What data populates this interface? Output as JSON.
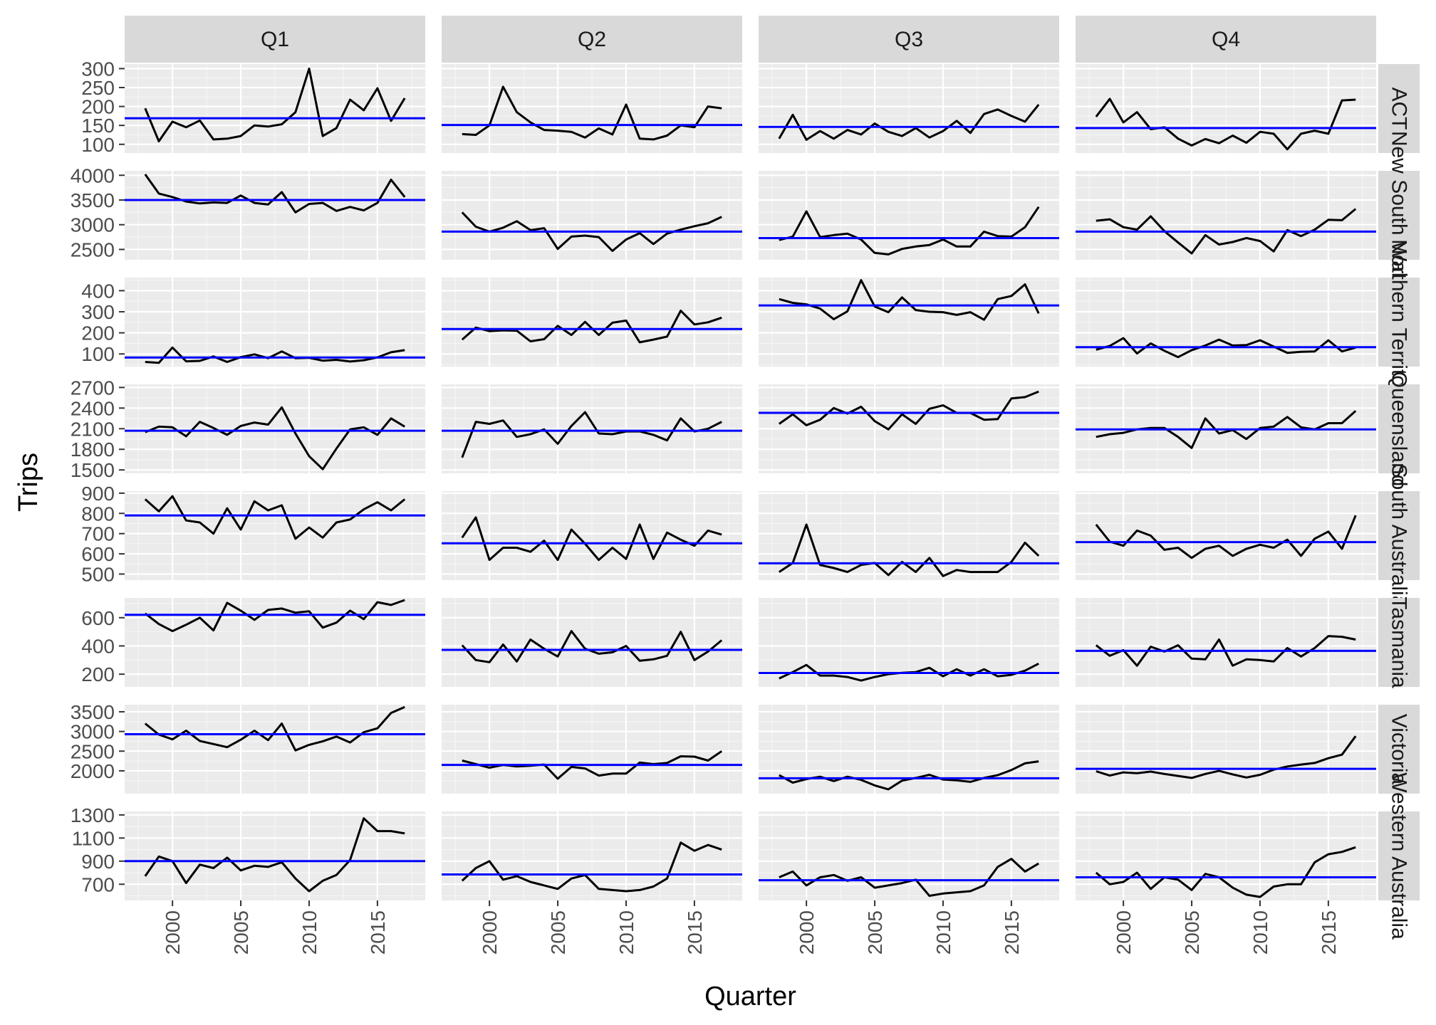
{
  "chart_data": {
    "type": "line",
    "xlabel": "Quarter",
    "ylabel": "Trips",
    "quarters": [
      "Q1",
      "Q2",
      "Q3",
      "Q4"
    ],
    "years": [
      1998,
      1999,
      2000,
      2001,
      2002,
      2003,
      2004,
      2005,
      2006,
      2007,
      2008,
      2009,
      2010,
      2011,
      2012,
      2013,
      2014,
      2015,
      2016,
      2017
    ],
    "x_ticks": [
      2000,
      2005,
      2010,
      2015
    ],
    "xlim": [
      1996.5,
      2018.5
    ],
    "colors": {
      "series": "#000000",
      "mean": "#0000ff",
      "panel": "#ebebeb",
      "strip": "#d9d9d9"
    },
    "states": [
      {
        "name": "ACT",
        "ylim": [
          77,
          312
        ],
        "y_ticks": [
          100,
          150,
          200,
          250,
          300
        ],
        "quarters": [
          {
            "values": [
              195,
              108,
              160,
              145,
              163,
              113,
              115,
              122,
              150,
              147,
              153,
              185,
              300,
              122,
              143,
              218,
              190,
              248,
              162,
              222
            ],
            "mean": 169
          },
          {
            "values": [
              127,
              125,
              150,
              252,
              185,
              158,
              138,
              136,
              133,
              118,
              142,
              126,
              205,
              115,
              113,
              123,
              150,
              145,
              200,
              195
            ],
            "mean": 151
          },
          {
            "values": [
              115,
              178,
              112,
              135,
              115,
              138,
              126,
              155,
              133,
              122,
              143,
              118,
              135,
              162,
              130,
              180,
              192,
              175,
              160,
              205
            ],
            "mean": 146
          },
          {
            "values": [
              173,
              220,
              158,
              185,
              140,
              145,
              115,
              97,
              114,
              103,
              123,
              104,
              133,
              128,
              87,
              128,
              136,
              128,
              216,
              218
            ],
            "mean": 143
          }
        ]
      },
      {
        "name": "New South Wales",
        "ylim": [
          2290,
          4090
        ],
        "y_ticks": [
          2500,
          3000,
          3500,
          4000
        ],
        "quarters": [
          {
            "values": [
              4020,
              3630,
              3560,
              3470,
              3430,
              3450,
              3440,
              3590,
              3440,
              3410,
              3660,
              3250,
              3420,
              3440,
              3280,
              3360,
              3290,
              3440,
              3910,
              3560
            ],
            "mean": 3500
          },
          {
            "values": [
              3250,
              2960,
              2860,
              2940,
              3070,
              2890,
              2930,
              2510,
              2760,
              2780,
              2750,
              2470,
              2700,
              2830,
              2610,
              2820,
              2900,
              2970,
              3030,
              3160
            ],
            "mean": 2860
          },
          {
            "values": [
              2690,
              2760,
              3270,
              2750,
              2790,
              2820,
              2700,
              2430,
              2400,
              2510,
              2560,
              2590,
              2700,
              2560,
              2560,
              2860,
              2770,
              2760,
              2950,
              3360
            ],
            "mean": 2730
          },
          {
            "values": [
              3080,
              3110,
              2950,
              2900,
              3170,
              2870,
              2640,
              2420,
              2790,
              2600,
              2650,
              2730,
              2670,
              2460,
              2890,
              2770,
              2900,
              3100,
              3090,
              3320
            ],
            "mean": 2860
          }
        ]
      },
      {
        "name": "Northern Territory",
        "ylim": [
          40,
          462
        ],
        "y_ticks": [
          100,
          200,
          300,
          400
        ],
        "quarters": [
          {
            "values": [
              62,
              58,
              130,
              65,
              67,
              88,
              62,
              85,
              98,
              80,
              112,
              80,
              82,
              68,
              72,
              64,
              70,
              84,
              108,
              118
            ],
            "mean": 83
          },
          {
            "values": [
              168,
              225,
              208,
              212,
              210,
              160,
              170,
              233,
              190,
              252,
              190,
              248,
              258,
              155,
              168,
              182,
              305,
              240,
              250,
              272
            ],
            "mean": 218
          },
          {
            "values": [
              360,
              342,
              335,
              315,
              265,
              302,
              450,
              325,
              298,
              368,
              308,
              300,
              298,
              285,
              298,
              262,
              360,
              375,
              430,
              292
            ],
            "mean": 330
          },
          {
            "values": [
              120,
              138,
              175,
              102,
              150,
              115,
              85,
              118,
              140,
              168,
              140,
              142,
              165,
              135,
              105,
              110,
              112,
              165,
              112,
              130
            ],
            "mean": 132
          }
        ]
      },
      {
        "name": "Queensland",
        "ylim": [
          1450,
          2745
        ],
        "y_ticks": [
          1500,
          1800,
          2100,
          2400,
          2700
        ],
        "quarters": [
          {
            "values": [
              2050,
              2130,
              2120,
              1990,
              2200,
              2110,
              2010,
              2140,
              2190,
              2160,
              2410,
              2030,
              1700,
              1510,
              1810,
              2090,
              2120,
              2010,
              2250,
              2130
            ],
            "mean": 2070
          },
          {
            "values": [
              1680,
              2200,
              2170,
              2220,
              1980,
              2020,
              2090,
              1880,
              2140,
              2340,
              2030,
              2020,
              2060,
              2060,
              2010,
              1930,
              2250,
              2060,
              2100,
              2200
            ],
            "mean": 2070
          },
          {
            "values": [
              2170,
              2310,
              2150,
              2230,
              2400,
              2320,
              2420,
              2210,
              2090,
              2310,
              2170,
              2390,
              2440,
              2330,
              2330,
              2230,
              2240,
              2540,
              2560,
              2640
            ],
            "mean": 2330
          },
          {
            "values": [
              1980,
              2020,
              2040,
              2090,
              2110,
              2110,
              1980,
              1820,
              2250,
              2030,
              2080,
              1950,
              2110,
              2130,
              2270,
              2120,
              2090,
              2180,
              2180,
              2360
            ],
            "mean": 2090
          }
        ]
      },
      {
        "name": "South Australia",
        "ylim": [
          470,
          910
        ],
        "y_ticks": [
          500,
          600,
          700,
          800,
          900
        ],
        "quarters": [
          {
            "values": [
              870,
              810,
              885,
              765,
              755,
              700,
              825,
              720,
              860,
              815,
              840,
              675,
              730,
              680,
              755,
              770,
              820,
              855,
              815,
              870
            ],
            "mean": 790
          },
          {
            "values": [
              680,
              780,
              570,
              630,
              630,
              610,
              665,
              570,
              720,
              650,
              570,
              630,
              575,
              745,
              575,
              705,
              670,
              640,
              715,
              695
            ],
            "mean": 652
          },
          {
            "values": [
              510,
              555,
              745,
              545,
              530,
              510,
              545,
              555,
              495,
              560,
              510,
              580,
              490,
              520,
              510,
              510,
              510,
              560,
              655,
              590
            ],
            "mean": 553
          },
          {
            "values": [
              745,
              660,
              640,
              715,
              690,
              620,
              630,
              580,
              625,
              640,
              590,
              625,
              645,
              630,
              670,
              590,
              675,
              710,
              625,
              790
            ],
            "mean": 658
          }
        ]
      },
      {
        "name": "Tasmania",
        "ylim": [
          110,
          740
        ],
        "y_ticks": [
          200,
          400,
          600
        ],
        "quarters": [
          {
            "values": [
              630,
              555,
              505,
              550,
              600,
              510,
              705,
              650,
              585,
              655,
              665,
              635,
              645,
              530,
              565,
              650,
              590,
              710,
              690,
              725
            ],
            "mean": 620
          },
          {
            "values": [
              405,
              300,
              285,
              410,
              290,
              445,
              380,
              325,
              505,
              380,
              345,
              355,
              400,
              295,
              305,
              330,
              500,
              300,
              360,
              440
            ],
            "mean": 372
          },
          {
            "values": [
              170,
              215,
              265,
              190,
              190,
              180,
              155,
              180,
              200,
              210,
              215,
              245,
              185,
              235,
              190,
              235,
              185,
              195,
              225,
              275
            ],
            "mean": 208
          },
          {
            "values": [
              405,
              330,
              370,
              260,
              395,
              360,
              405,
              310,
              305,
              445,
              260,
              305,
              300,
              290,
              385,
              325,
              385,
              470,
              465,
              445
            ],
            "mean": 365
          }
        ]
      },
      {
        "name": "Victoria",
        "ylim": [
          1420,
          3680
        ],
        "y_ticks": [
          2000,
          2500,
          3000,
          3500
        ],
        "quarters": [
          {
            "values": [
              3200,
              2920,
              2800,
              3020,
              2760,
              2680,
              2600,
              2790,
              3020,
              2780,
              3200,
              2520,
              2660,
              2750,
              2870,
              2720,
              2980,
              3080,
              3470,
              3620
            ],
            "mean": 2930
          },
          {
            "values": [
              2260,
              2170,
              2080,
              2150,
              2110,
              2130,
              2160,
              1800,
              2100,
              2060,
              1880,
              1930,
              1930,
              2210,
              2170,
              2200,
              2370,
              2360,
              2260,
              2500
            ],
            "mean": 2150
          },
          {
            "values": [
              1890,
              1700,
              1790,
              1850,
              1740,
              1850,
              1770,
              1630,
              1530,
              1750,
              1820,
              1900,
              1780,
              1760,
              1720,
              1820,
              1890,
              2020,
              2190,
              2240
            ],
            "mean": 1810
          },
          {
            "values": [
              1990,
              1880,
              1960,
              1940,
              1980,
              1920,
              1870,
              1820,
              1920,
              2000,
              1910,
              1830,
              1900,
              2030,
              2110,
              2160,
              2200,
              2320,
              2410,
              2880
            ],
            "mean": 2050
          }
        ]
      },
      {
        "name": "Western Australia",
        "ylim": [
          560,
          1330
        ],
        "y_ticks": [
          700,
          900,
          1100,
          1300
        ],
        "quarters": [
          {
            "values": [
              770,
              940,
              900,
              710,
              870,
              840,
              930,
              820,
              860,
              850,
              890,
              750,
              640,
              730,
              780,
              910,
              1270,
              1160,
              1160,
              1140
            ],
            "mean": 900
          },
          {
            "values": [
              730,
              840,
              900,
              740,
              770,
              720,
              690,
              660,
              750,
              780,
              660,
              650,
              640,
              650,
              680,
              750,
              1060,
              990,
              1040,
              1000
            ],
            "mean": 785
          },
          {
            "values": [
              760,
              810,
              690,
              760,
              780,
              730,
              760,
              670,
              690,
              710,
              740,
              600,
              620,
              630,
              640,
              690,
              850,
              920,
              810,
              880
            ],
            "mean": 735
          },
          {
            "values": [
              800,
              700,
              720,
              800,
              660,
              760,
              740,
              650,
              790,
              760,
              670,
              610,
              590,
              680,
              700,
              700,
              890,
              960,
              980,
              1020
            ],
            "mean": 760
          }
        ]
      }
    ]
  }
}
